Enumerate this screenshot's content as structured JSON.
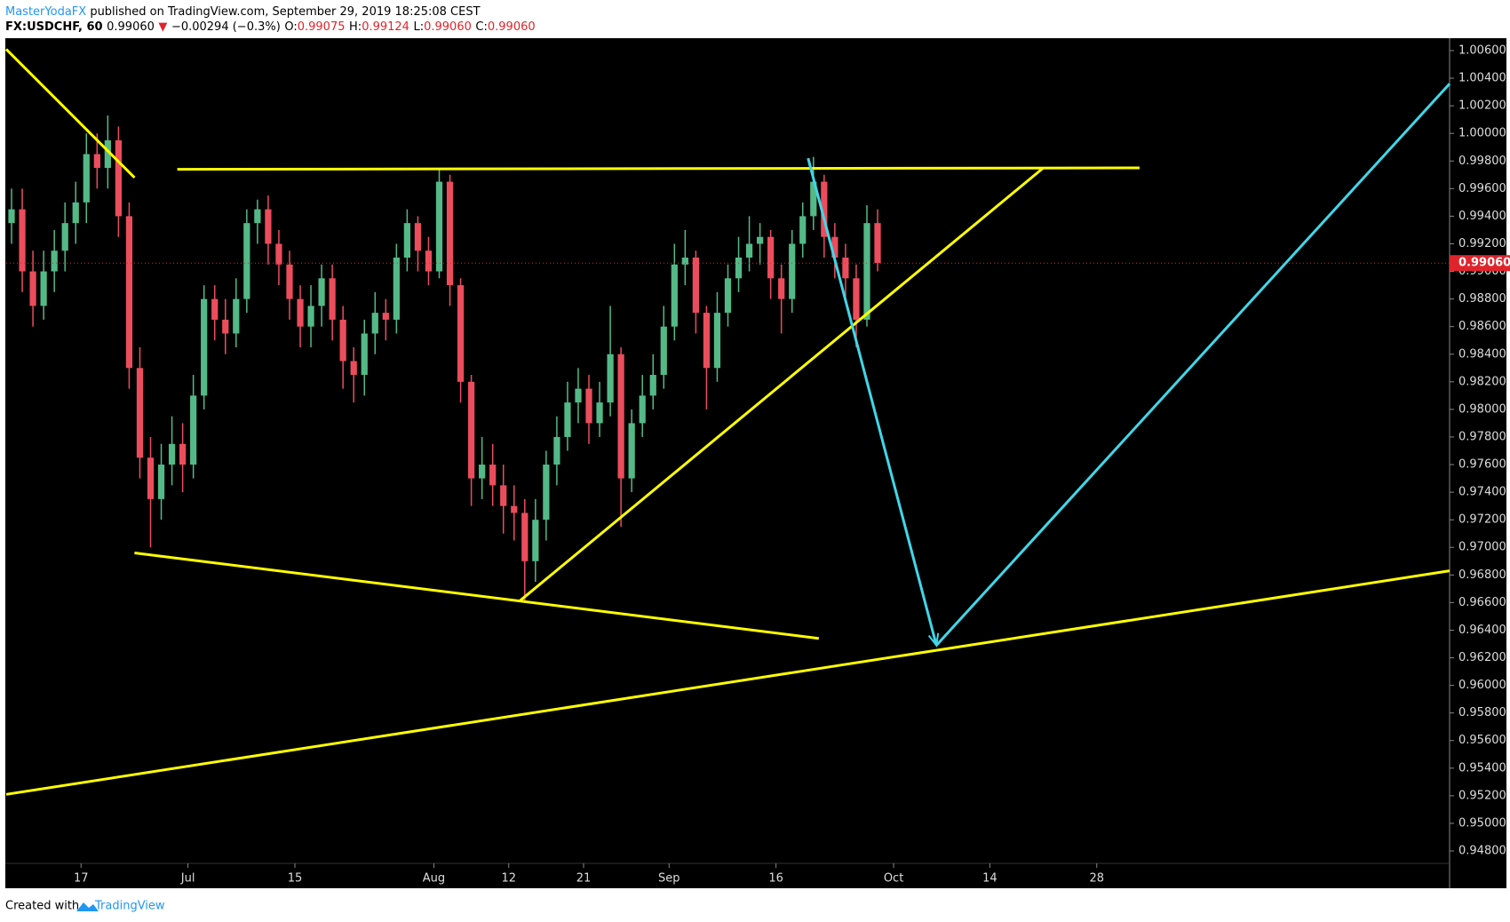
{
  "header": {
    "author": "MasterYodaFX",
    "published": "published on TradingView.com, September 29, 2019 18:25:08 CEST",
    "symbol": "FX:USDCHF, 60",
    "last": "0.99060",
    "change_arrow": "▼",
    "change": "−0.00294 (−0.3%)",
    "o_label": "O:",
    "o": "0.99075",
    "h_label": "H:",
    "h": "0.99124",
    "l_label": "L:",
    "l": "0.99060",
    "c_label": "C:",
    "c": "0.99060"
  },
  "footer": {
    "created": "Created with",
    "brand": "TradingView"
  },
  "chart_data": {
    "type": "candlestick",
    "up_color": "#53b987",
    "down_color": "#eb4d5c",
    "x": [
      "2019-06-06",
      "2019-06-07",
      "2019-06-10",
      "2019-06-11",
      "2019-06-12",
      "2019-06-13",
      "2019-06-14",
      "2019-06-17",
      "2019-06-18",
      "2019-06-19",
      "2019-06-20",
      "2019-06-21",
      "2019-06-24",
      "2019-06-25",
      "2019-06-26",
      "2019-06-27",
      "2019-06-28",
      "2019-07-01",
      "2019-07-02",
      "2019-07-03",
      "2019-07-04",
      "2019-07-05",
      "2019-07-08",
      "2019-07-09",
      "2019-07-10",
      "2019-07-11",
      "2019-07-12",
      "2019-07-15",
      "2019-07-16",
      "2019-07-17",
      "2019-07-18",
      "2019-07-19",
      "2019-07-22",
      "2019-07-23",
      "2019-07-24",
      "2019-07-25",
      "2019-07-26",
      "2019-07-29",
      "2019-07-30",
      "2019-07-31",
      "2019-08-01",
      "2019-08-02",
      "2019-08-05",
      "2019-08-06",
      "2019-08-07",
      "2019-08-08",
      "2019-08-09",
      "2019-08-12",
      "2019-08-13",
      "2019-08-14",
      "2019-08-15",
      "2019-08-16",
      "2019-08-19",
      "2019-08-20",
      "2019-08-21",
      "2019-08-22",
      "2019-08-23",
      "2019-08-26",
      "2019-08-27",
      "2019-08-28",
      "2019-08-29",
      "2019-08-30",
      "2019-09-02",
      "2019-09-03",
      "2019-09-04",
      "2019-09-05",
      "2019-09-06",
      "2019-09-09",
      "2019-09-10",
      "2019-09-11",
      "2019-09-12",
      "2019-09-13",
      "2019-09-16",
      "2019-09-17",
      "2019-09-18",
      "2019-09-19",
      "2019-09-20",
      "2019-09-23",
      "2019-09-24",
      "2019-09-25",
      "2019-09-26",
      "2019-09-27"
    ],
    "open": [
      0.9935,
      0.9945,
      0.99,
      0.9875,
      0.99,
      0.9915,
      0.9935,
      0.995,
      0.9985,
      0.9975,
      0.9995,
      0.994,
      0.983,
      0.9765,
      0.9735,
      0.976,
      0.9775,
      0.976,
      0.981,
      0.988,
      0.9865,
      0.9855,
      0.988,
      0.9935,
      0.9945,
      0.992,
      0.9905,
      0.988,
      0.986,
      0.9875,
      0.9895,
      0.9865,
      0.9835,
      0.9825,
      0.9855,
      0.987,
      0.9865,
      0.991,
      0.9935,
      0.9915,
      0.99,
      0.9965,
      0.989,
      0.982,
      0.975,
      0.976,
      0.9745,
      0.973,
      0.9725,
      0.969,
      0.972,
      0.976,
      0.978,
      0.9805,
      0.9815,
      0.979,
      0.9805,
      0.984,
      0.975,
      0.979,
      0.981,
      0.9825,
      0.986,
      0.9905,
      0.991,
      0.987,
      0.983,
      0.987,
      0.9895,
      0.991,
      0.992,
      0.9925,
      0.9895,
      0.988,
      0.992,
      0.994,
      0.9965,
      0.9925,
      0.991,
      0.9895,
      0.9865,
      0.9935
    ],
    "high": [
      0.996,
      0.996,
      0.9915,
      0.9915,
      0.993,
      0.995,
      0.9965,
      1.0,
      1.0,
      1.0013,
      1.0005,
      0.995,
      0.9845,
      0.978,
      0.9775,
      0.9795,
      0.979,
      0.9825,
      0.989,
      0.989,
      0.988,
      0.9895,
      0.9945,
      0.9952,
      0.9955,
      0.993,
      0.9915,
      0.989,
      0.989,
      0.9905,
      0.9905,
      0.9875,
      0.9845,
      0.9865,
      0.9885,
      0.988,
      0.992,
      0.9945,
      0.994,
      0.9925,
      0.9975,
      0.997,
      0.9895,
      0.9825,
      0.978,
      0.9775,
      0.976,
      0.9745,
      0.9735,
      0.9735,
      0.977,
      0.9795,
      0.982,
      0.983,
      0.9825,
      0.982,
      0.9875,
      0.9845,
      0.98,
      0.9825,
      0.984,
      0.9875,
      0.992,
      0.993,
      0.9915,
      0.9875,
      0.9885,
      0.9905,
      0.9925,
      0.994,
      0.9935,
      0.993,
      0.9905,
      0.993,
      0.995,
      0.9983,
      0.997,
      0.9935,
      0.992,
      0.9905,
      0.9948,
      0.9945
    ],
    "low": [
      0.992,
      0.9885,
      0.986,
      0.9865,
      0.9885,
      0.99,
      0.992,
      0.9935,
      0.996,
      0.996,
      0.9925,
      0.9815,
      0.975,
      0.97,
      0.972,
      0.9745,
      0.974,
      0.975,
      0.98,
      0.985,
      0.984,
      0.9845,
      0.987,
      0.992,
      0.9905,
      0.989,
      0.9865,
      0.9845,
      0.9845,
      0.986,
      0.985,
      0.9815,
      0.9805,
      0.981,
      0.984,
      0.985,
      0.9855,
      0.99,
      0.99,
      0.989,
      0.9895,
      0.9875,
      0.9805,
      0.973,
      0.9735,
      0.973,
      0.971,
      0.9705,
      0.966,
      0.9675,
      0.9705,
      0.9745,
      0.977,
      0.979,
      0.9775,
      0.978,
      0.9795,
      0.9715,
      0.974,
      0.978,
      0.98,
      0.9815,
      0.985,
      0.989,
      0.9855,
      0.98,
      0.982,
      0.986,
      0.9885,
      0.99,
      0.9905,
      0.988,
      0.9855,
      0.987,
      0.991,
      0.993,
      0.991,
      0.9895,
      0.988,
      0.9845,
      0.986,
      0.99
    ],
    "close": [
      0.9945,
      0.99,
      0.9875,
      0.99,
      0.9915,
      0.9935,
      0.995,
      0.9985,
      0.9975,
      0.9995,
      0.994,
      0.983,
      0.9765,
      0.9735,
      0.976,
      0.9775,
      0.976,
      0.981,
      0.988,
      0.9865,
      0.9855,
      0.988,
      0.9935,
      0.9945,
      0.992,
      0.9905,
      0.988,
      0.986,
      0.9875,
      0.9895,
      0.9865,
      0.9835,
      0.9825,
      0.9855,
      0.987,
      0.9865,
      0.991,
      0.9935,
      0.9915,
      0.99,
      0.9965,
      0.989,
      0.982,
      0.975,
      0.976,
      0.9745,
      0.973,
      0.9725,
      0.969,
      0.972,
      0.976,
      0.978,
      0.9805,
      0.9815,
      0.979,
      0.9805,
      0.984,
      0.975,
      0.979,
      0.981,
      0.9825,
      0.986,
      0.9905,
      0.991,
      0.987,
      0.983,
      0.987,
      0.9895,
      0.991,
      0.992,
      0.9925,
      0.9895,
      0.988,
      0.992,
      0.994,
      0.9965,
      0.9925,
      0.991,
      0.9895,
      0.9865,
      0.9935,
      0.9906
    ],
    "xlim": [
      "2019-06-06",
      "2019-12-12"
    ],
    "xticks": [
      {
        "value": "2019-06-17",
        "label": "17"
      },
      {
        "value": "2019-07-01",
        "label": "Jul"
      },
      {
        "value": "2019-07-15",
        "label": "15"
      },
      {
        "value": "2019-08-01",
        "label": "Aug"
      },
      {
        "value": "2019-08-12",
        "label": "12"
      },
      {
        "value": "2019-08-21",
        "label": "21"
      },
      {
        "value": "2019-09-01",
        "label": "Sep"
      },
      {
        "value": "2019-09-16",
        "label": "16"
      },
      {
        "value": "2019-10-01",
        "label": "Oct"
      },
      {
        "value": "2019-10-14",
        "label": "14"
      },
      {
        "value": "2019-10-28",
        "label": "28"
      }
    ],
    "ylim": [
      0.9471,
      1.0069
    ],
    "yticks": [
      {
        "value": 0.948,
        "label": "0.94800"
      },
      {
        "value": 0.95,
        "label": "0.95000"
      },
      {
        "value": 0.952,
        "label": "0.95200"
      },
      {
        "value": 0.954,
        "label": "0.95400"
      },
      {
        "value": 0.956,
        "label": "0.95600"
      },
      {
        "value": 0.958,
        "label": "0.95800"
      },
      {
        "value": 0.96,
        "label": "0.96000"
      },
      {
        "value": 0.962,
        "label": "0.96200"
      },
      {
        "value": 0.964,
        "label": "0.96400"
      },
      {
        "value": 0.966,
        "label": "0.96600"
      },
      {
        "value": 0.968,
        "label": "0.96800"
      },
      {
        "value": 0.97,
        "label": "0.97000"
      },
      {
        "value": 0.972,
        "label": "0.97200"
      },
      {
        "value": 0.974,
        "label": "0.97400"
      },
      {
        "value": 0.976,
        "label": "0.97600"
      },
      {
        "value": 0.978,
        "label": "0.97800"
      },
      {
        "value": 0.98,
        "label": "0.98000"
      },
      {
        "value": 0.982,
        "label": "0.98200"
      },
      {
        "value": 0.984,
        "label": "0.98400"
      },
      {
        "value": 0.986,
        "label": "0.98600"
      },
      {
        "value": 0.988,
        "label": "0.98800"
      },
      {
        "value": 0.99,
        "label": "0.99000"
      },
      {
        "value": 0.992,
        "label": "0.99200"
      },
      {
        "value": 0.994,
        "label": "0.99400"
      },
      {
        "value": 0.996,
        "label": "0.99600"
      },
      {
        "value": 0.998,
        "label": "0.99800"
      },
      {
        "value": 1.0,
        "label": "1.00000"
      },
      {
        "value": 1.002,
        "label": "1.00200"
      },
      {
        "value": 1.004,
        "label": "1.00400"
      },
      {
        "value": 1.006,
        "label": "1.00600"
      }
    ],
    "last_price": {
      "value": 0.9906,
      "label": "0.99060"
    },
    "last_color": "#e0242c",
    "drawings": [
      {
        "color": "#ffff00",
        "x": [
          "2019-06-06",
          "2019-06-24"
        ],
        "y": [
          1.0061,
          0.9968
        ]
      },
      {
        "color": "#ffff00",
        "x": [
          "2019-06-28",
          "2019-11-01"
        ],
        "y": [
          0.9974,
          0.9975
        ]
      },
      {
        "color": "#ffff00",
        "x": [
          "2019-06-24",
          "2019-09-20"
        ],
        "y": [
          0.9696,
          0.9634
        ]
      },
      {
        "color": "#ffff00",
        "x": [
          "2019-08-13",
          "2019-10-21"
        ],
        "y": [
          0.9661,
          0.9975
        ]
      },
      {
        "color": "#ffff00",
        "x": [
          "2019-06-06",
          "2019-12-12"
        ],
        "y": [
          0.9521,
          0.9683
        ]
      },
      {
        "color": "#40d7e8",
        "x": [
          "2019-09-19",
          "2019-10-07"
        ],
        "y": [
          0.9982,
          0.9629
        ],
        "arrow": true
      },
      {
        "color": "#40d7e8",
        "x": [
          "2019-10-07",
          "2019-12-12"
        ],
        "y": [
          0.9629,
          1.0036
        ]
      }
    ]
  }
}
